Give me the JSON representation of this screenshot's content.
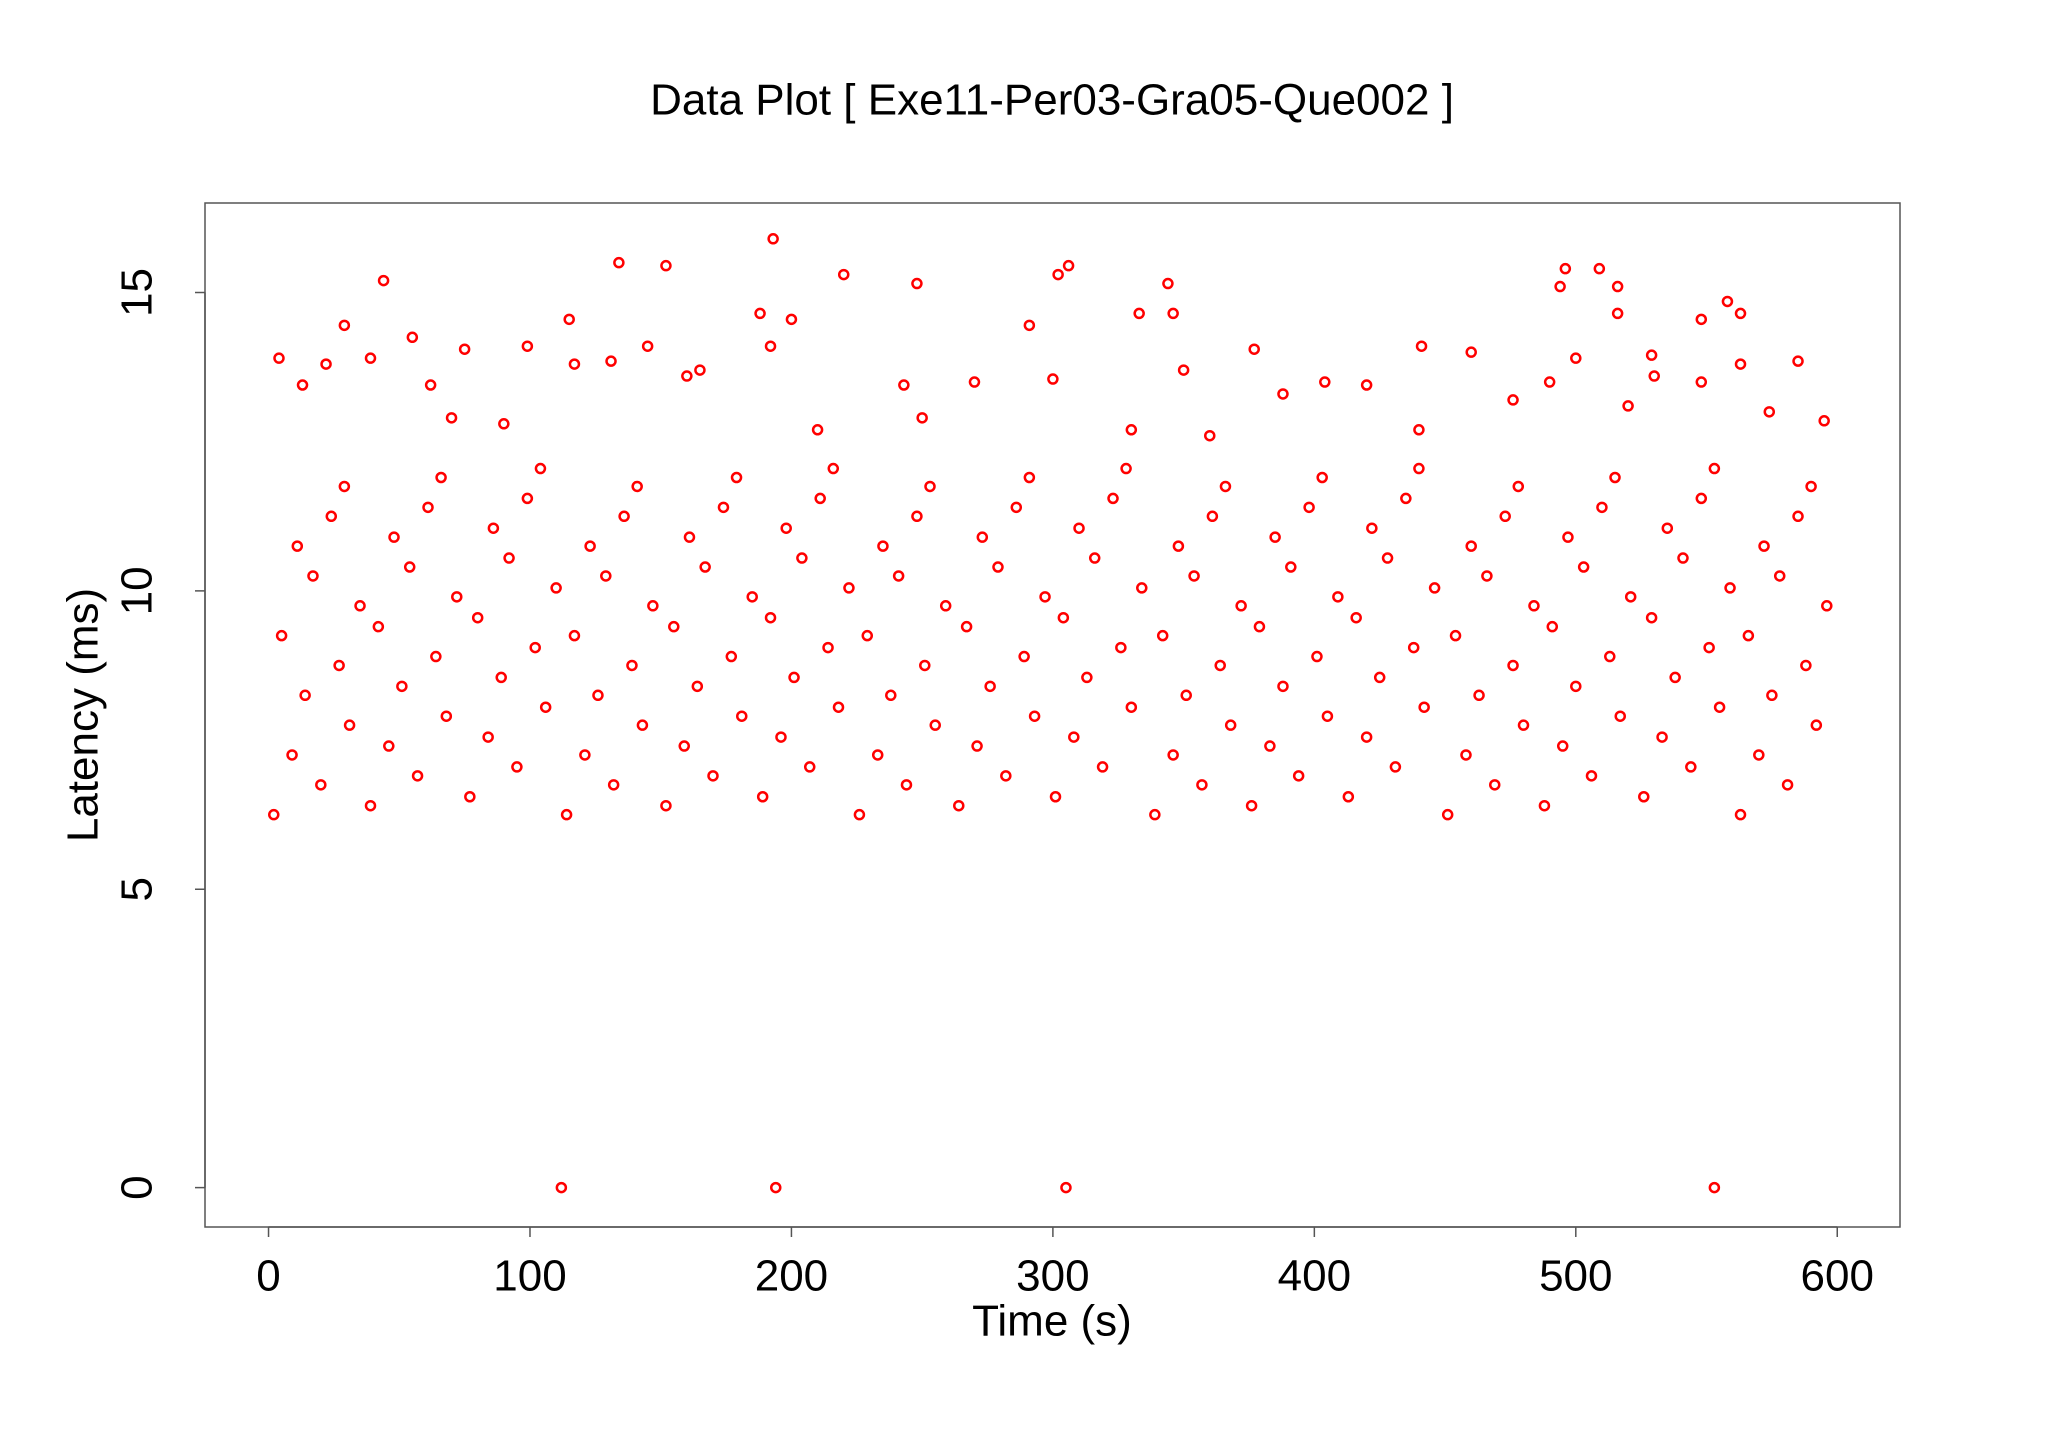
{
  "chart_data": {
    "type": "scatter",
    "title": "Data Plot [ Exe11-Per03-Gra05-Que002 ]",
    "xlabel": "Time (s)",
    "ylabel": "Latency (ms)",
    "color": "#ff0000",
    "xlim": [
      -24.3,
      624
    ],
    "ylim": [
      -0.66,
      16.5
    ],
    "xticks": [
      0,
      100,
      200,
      300,
      400,
      500,
      600
    ],
    "yticks": [
      0,
      5,
      10,
      15
    ],
    "x": [
      112,
      194,
      305,
      553,
      193,
      134,
      152,
      306,
      302,
      220,
      44,
      248,
      344,
      496,
      509,
      494,
      516,
      558,
      563,
      516,
      346,
      333,
      188,
      200,
      115,
      29,
      291,
      548,
      55,
      145,
      99,
      192,
      75,
      441,
      460,
      377,
      4,
      39,
      131,
      529,
      500,
      585,
      563,
      22,
      117,
      13,
      62,
      243,
      404,
      420,
      160,
      165,
      490,
      530,
      548,
      270,
      300,
      350,
      388,
      476,
      520,
      250,
      330,
      210,
      440,
      90,
      70,
      574,
      595,
      360,
      2,
      39,
      77,
      114,
      152,
      189,
      226,
      264,
      301,
      339,
      376,
      413,
      451,
      488,
      526,
      563,
      20,
      57,
      95,
      132,
      170,
      207,
      244,
      282,
      319,
      357,
      394,
      431,
      469,
      506,
      544,
      581,
      9,
      46,
      84,
      121,
      159,
      196,
      233,
      271,
      308,
      346,
      383,
      420,
      458,
      495,
      533,
      570,
      31,
      68,
      106,
      143,
      181,
      218,
      255,
      293,
      330,
      368,
      405,
      442,
      480,
      517,
      555,
      592,
      14,
      51,
      89,
      126,
      164,
      201,
      238,
      276,
      313,
      351,
      388,
      425,
      463,
      500,
      538,
      575,
      27,
      64,
      102,
      139,
      177,
      214,
      251,
      289,
      326,
      364,
      401,
      438,
      476,
      513,
      551,
      588,
      5,
      42,
      80,
      117,
      155,
      192,
      229,
      267,
      304,
      342,
      379,
      416,
      454,
      491,
      529,
      566,
      35,
      72,
      110,
      147,
      185,
      222,
      259,
      297,
      334,
      372,
      409,
      446,
      484,
      521,
      559,
      596,
      17,
      54,
      92,
      129,
      167,
      204,
      241,
      279,
      316,
      354,
      391,
      428,
      466,
      503,
      541,
      578,
      11,
      48,
      86,
      123,
      161,
      198,
      235,
      273,
      310,
      348,
      385,
      422,
      460,
      497,
      535,
      572,
      24,
      61,
      99,
      136,
      174,
      211,
      248,
      286,
      323,
      361,
      398,
      435,
      473,
      510,
      548,
      585,
      29,
      66,
      104,
      141,
      179,
      216,
      253,
      291,
      328,
      366,
      403,
      440,
      478,
      515,
      553,
      590
    ],
    "y": [
      0,
      0,
      0,
      0,
      15.9,
      15.5,
      15.45,
      15.45,
      15.3,
      15.3,
      15.2,
      15.15,
      15.15,
      15.4,
      15.4,
      15.1,
      15.1,
      14.85,
      14.65,
      14.65,
      14.65,
      14.65,
      14.65,
      14.55,
      14.55,
      14.45,
      14.45,
      14.55,
      14.25,
      14.1,
      14.1,
      14.1,
      14.05,
      14.1,
      14,
      14.05,
      13.9,
      13.9,
      13.85,
      13.95,
      13.9,
      13.85,
      13.8,
      13.8,
      13.8,
      13.45,
      13.45,
      13.45,
      13.5,
      13.45,
      13.6,
      13.7,
      13.5,
      13.6,
      13.5,
      13.5,
      13.55,
      13.7,
      13.3,
      13.2,
      13.1,
      12.9,
      12.7,
      12.7,
      12.7,
      12.8,
      12.9,
      13,
      12.85,
      12.6,
      6.25,
      6.4,
      6.55,
      6.25,
      6.4,
      6.55,
      6.25,
      6.4,
      6.55,
      6.25,
      6.4,
      6.55,
      6.25,
      6.4,
      6.55,
      6.25,
      6.75,
      6.9,
      7.05,
      6.75,
      6.9,
      7.05,
      6.75,
      6.9,
      7.05,
      6.75,
      6.9,
      7.05,
      6.75,
      6.9,
      7.05,
      6.75,
      7.25,
      7.4,
      7.55,
      7.25,
      7.4,
      7.55,
      7.25,
      7.4,
      7.55,
      7.25,
      7.4,
      7.55,
      7.25,
      7.4,
      7.55,
      7.25,
      7.75,
      7.9,
      8.05,
      7.75,
      7.9,
      8.05,
      7.75,
      7.9,
      8.05,
      7.75,
      7.9,
      8.05,
      7.75,
      7.9,
      8.05,
      7.75,
      8.25,
      8.4,
      8.55,
      8.25,
      8.4,
      8.55,
      8.25,
      8.4,
      8.55,
      8.25,
      8.4,
      8.55,
      8.25,
      8.4,
      8.55,
      8.25,
      8.75,
      8.9,
      9.05,
      8.75,
      8.9,
      9.05,
      8.75,
      8.9,
      9.05,
      8.75,
      8.9,
      9.05,
      8.75,
      8.9,
      9.05,
      8.75,
      9.25,
      9.4,
      9.55,
      9.25,
      9.4,
      9.55,
      9.25,
      9.4,
      9.55,
      9.25,
      9.4,
      9.55,
      9.25,
      9.4,
      9.55,
      9.25,
      9.75,
      9.9,
      10.05,
      9.75,
      9.9,
      10.05,
      9.75,
      9.9,
      10.05,
      9.75,
      9.9,
      10.05,
      9.75,
      9.9,
      10.05,
      9.75,
      10.25,
      10.4,
      10.55,
      10.25,
      10.4,
      10.55,
      10.25,
      10.4,
      10.55,
      10.25,
      10.4,
      10.55,
      10.25,
      10.4,
      10.55,
      10.25,
      10.75,
      10.9,
      11.05,
      10.75,
      10.9,
      11.05,
      10.75,
      10.9,
      11.05,
      10.75,
      10.9,
      11.05,
      10.75,
      10.9,
      11.05,
      10.75,
      11.25,
      11.4,
      11.55,
      11.25,
      11.4,
      11.55,
      11.25,
      11.4,
      11.55,
      11.25,
      11.4,
      11.55,
      11.25,
      11.4,
      11.55,
      11.25,
      11.75,
      11.9,
      12.05,
      11.75,
      11.9,
      12.05,
      11.75,
      11.9,
      12.05,
      11.75,
      11.9,
      12.05,
      11.75,
      11.9,
      12.05,
      11.75
    ]
  }
}
